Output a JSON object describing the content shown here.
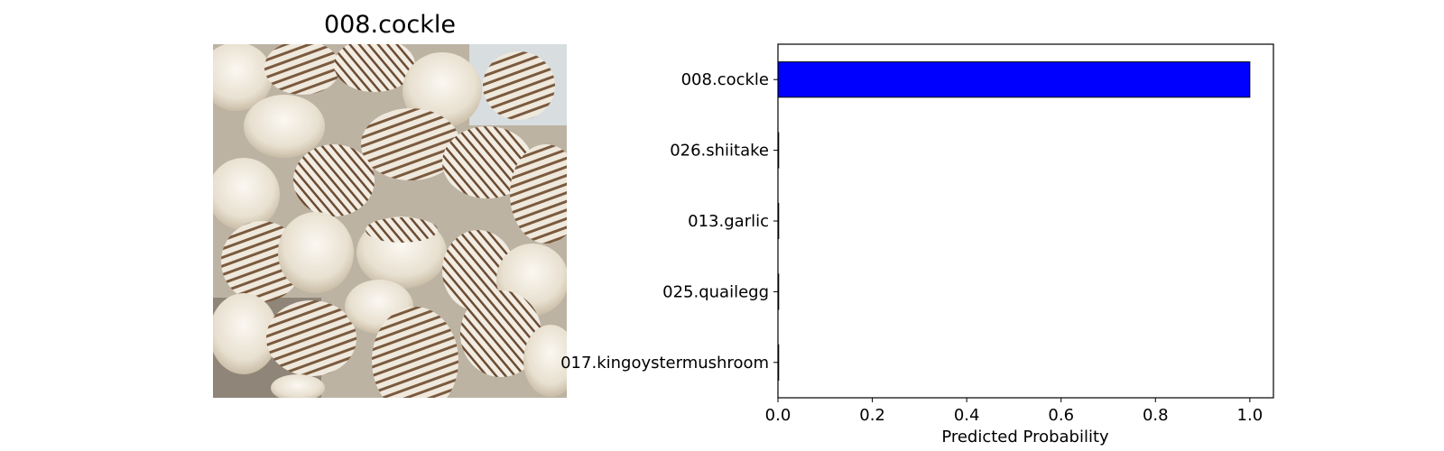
{
  "image_panel": {
    "title": "008.cockle",
    "subject_icon": "cockle-shells-photo"
  },
  "chart_data": {
    "type": "bar",
    "orientation": "horizontal",
    "categories": [
      "008.cockle",
      "026.shiitake",
      "013.garlic",
      "025.quailegg",
      "017.kingoystermushroom"
    ],
    "values": [
      1.0,
      0.0,
      0.0,
      0.0,
      0.0
    ],
    "xlabel": "Predicted Probability",
    "xlim": [
      0,
      1.05
    ],
    "xticks": [
      "0.0",
      "0.2",
      "0.4",
      "0.6",
      "0.8",
      "1.0"
    ],
    "bar_color": "#0000ff",
    "edge_color": "#000000",
    "grid": false,
    "legend": "none"
  }
}
